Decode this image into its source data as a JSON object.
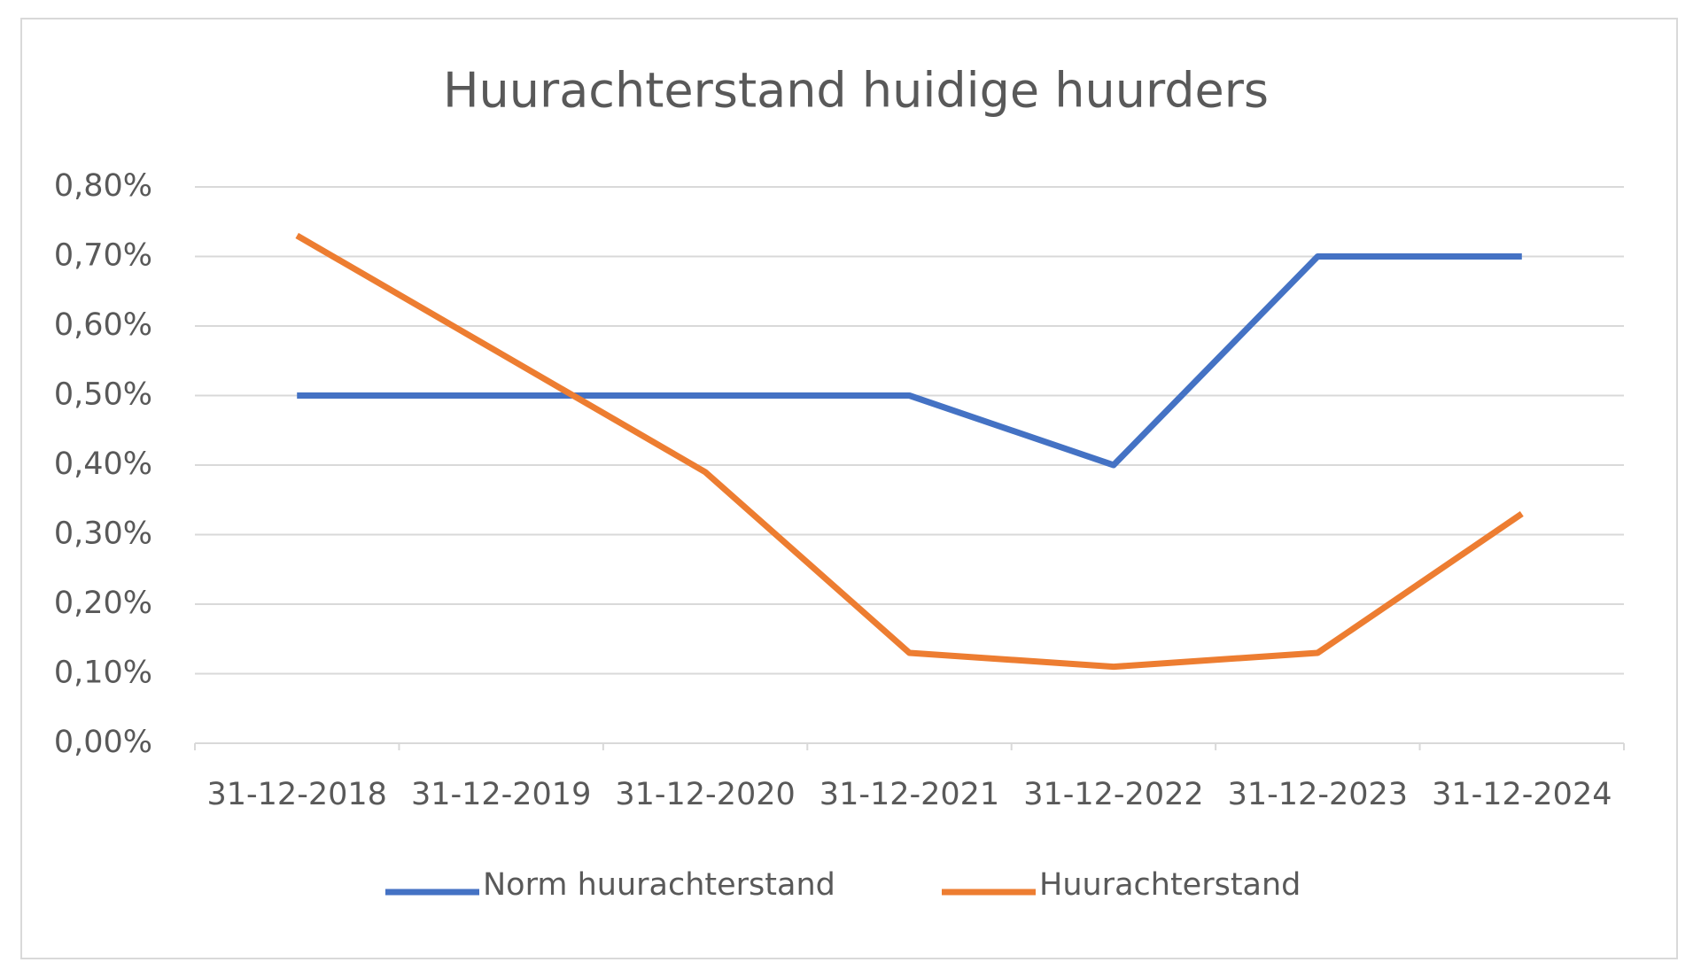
{
  "chart_data": {
    "type": "line",
    "title": "Huurachterstand huidige huurders",
    "categories": [
      "31-12-2018",
      "31-12-2019",
      "31-12-2020",
      "31-12-2021",
      "31-12-2022",
      "31-12-2023",
      "31-12-2024"
    ],
    "series": [
      {
        "name": "Norm huurachterstand",
        "color": "#4472c4",
        "values": [
          0.5,
          0.5,
          0.5,
          0.5,
          0.4,
          0.7,
          0.7
        ]
      },
      {
        "name": "Huurachterstand",
        "color": "#ed7d31",
        "values": [
          0.73,
          0.56,
          0.39,
          0.13,
          0.11,
          0.13,
          0.33
        ]
      }
    ],
    "ylim": [
      0,
      0.8
    ],
    "yticks": [
      {
        "value": 0,
        "label": "0,00%"
      },
      {
        "value": 0.1,
        "label": "0,10%"
      },
      {
        "value": 0.2,
        "label": "0,20%"
      },
      {
        "value": 0.3,
        "label": "0,30%"
      },
      {
        "value": 0.4,
        "label": "0,40%"
      },
      {
        "value": 0.5,
        "label": "0,50%"
      },
      {
        "value": 0.6,
        "label": "0,60%"
      },
      {
        "value": 0.7,
        "label": "0,70%"
      },
      {
        "value": 0.8,
        "label": "0,80%"
      }
    ],
    "grid": true,
    "legend": "bottom"
  }
}
